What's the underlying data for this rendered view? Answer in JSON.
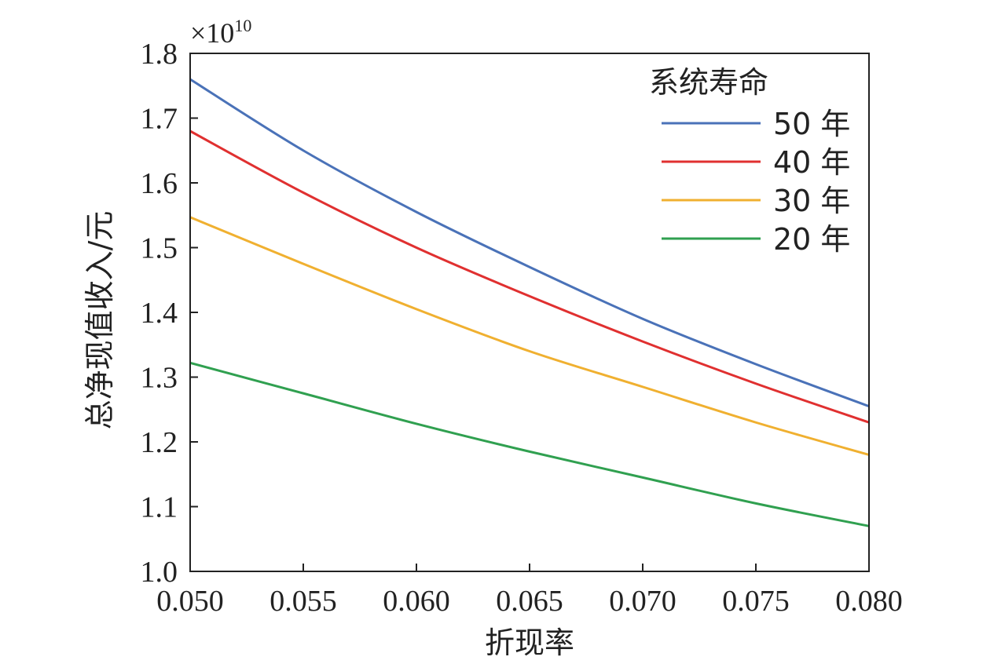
{
  "chart_data": {
    "type": "line",
    "title": "",
    "xlabel": "折现率",
    "ylabel": "总净现值收入/元",
    "y_scale_note": {
      "base": "×10",
      "exponent": "10"
    },
    "xlim": [
      0.05,
      0.08
    ],
    "ylim": [
      1.0,
      1.8
    ],
    "x_ticks": [
      0.05,
      0.055,
      0.06,
      0.065,
      0.07,
      0.075,
      0.08
    ],
    "x_tick_labels": [
      "0.050",
      "0.055",
      "0.060",
      "0.065",
      "0.070",
      "0.075",
      "0.080"
    ],
    "y_ticks": [
      1.0,
      1.1,
      1.2,
      1.3,
      1.4,
      1.5,
      1.6,
      1.7,
      1.8
    ],
    "y_tick_labels": [
      "1.0",
      "1.1",
      "1.2",
      "1.3",
      "1.4",
      "1.5",
      "1.6",
      "1.7",
      "1.8"
    ],
    "grid": false,
    "legend": {
      "title": "系统寿命",
      "position": "top-right"
    },
    "x": [
      0.05,
      0.055,
      0.06,
      0.065,
      0.07,
      0.075,
      0.08
    ],
    "series": [
      {
        "name": "50 年",
        "color": "#4a72b8",
        "values": [
          1.76,
          1.65,
          1.555,
          1.47,
          1.39,
          1.32,
          1.255
        ]
      },
      {
        "name": "40 年",
        "color": "#e03030",
        "values": [
          1.68,
          1.585,
          1.5,
          1.425,
          1.355,
          1.29,
          1.23
        ]
      },
      {
        "name": "30 年",
        "color": "#f0b030",
        "values": [
          1.547,
          1.475,
          1.405,
          1.34,
          1.285,
          1.23,
          1.18
        ]
      },
      {
        "name": "20 年",
        "color": "#30a050",
        "values": [
          1.322,
          1.275,
          1.228,
          1.185,
          1.145,
          1.105,
          1.07
        ]
      }
    ]
  }
}
